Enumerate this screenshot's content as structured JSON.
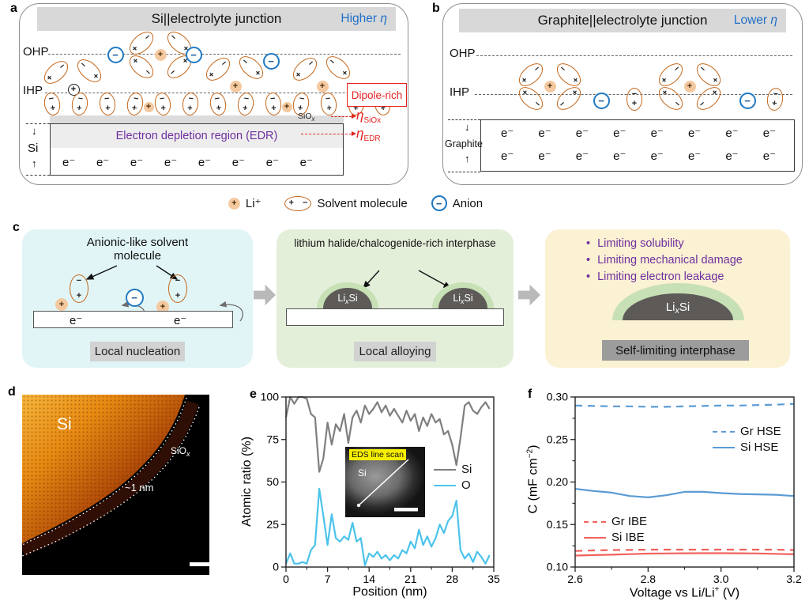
{
  "symbols": {
    "plus": "+",
    "minus": "−",
    "electron": "e⁻",
    "up_arrow": "↑",
    "down_arrow": "↓",
    "bullet": "•"
  },
  "colors": {
    "header_gray": "#d8d8d8",
    "accent_blue": "#2170c8",
    "solvent_orange": "#c4671b",
    "li_fill": "#f4c9a0",
    "anion_blue": "#2079c2",
    "red": "#e42320",
    "purple": "#7030a0",
    "box_cyan": "#e1f5f6",
    "box_green": "#e4efda",
    "box_cream": "#fbf1d3",
    "dome_gray": "#5d5a58",
    "halo_green": "#c7e0b5",
    "label_gray": "#d2d2d2",
    "dark_label_gray": "#9c9c9c",
    "arrow_gray": "#b9b9b9",
    "si_line": "#7f7f7f",
    "o_line": "#4cc3ea",
    "hse_blue": "#5b9bd5",
    "ibe_red": "#f0625d"
  },
  "panel_a": {
    "label": "a",
    "title": "Si||electrolyte junction",
    "eta_note": {
      "prefix": "Higher ",
      "eta": "η"
    },
    "ohp": "OHP",
    "ihp": "IHP",
    "dipole_rich": "Dipole-rich",
    "siox": {
      "base": "SiO",
      "sub": "x"
    },
    "eta_siox": {
      "eta": "η",
      "sub": "SiOx"
    },
    "eta_edr": {
      "eta": "η",
      "sub": "EDR"
    },
    "edr_text": "Electron depletion region (EDR)",
    "electrode": "Si",
    "electrons_per_row": 8
  },
  "panel_b": {
    "label": "b",
    "title": "Graphite||electrolyte junction",
    "eta_note": {
      "prefix": "Lower ",
      "eta": "η"
    },
    "ohp": "OHP",
    "ihp": "IHP",
    "electrode": "Graphite",
    "electron_rows": 2,
    "electrons_per_row": 8
  },
  "legend": {
    "li": "Li⁺",
    "solvent": "Solvent molecule",
    "anion": "Anion"
  },
  "panel_c": {
    "label": "c",
    "stage1": {
      "annotation": "Anionic-like solvent molecule",
      "caption": "Local nucleation"
    },
    "stage2": {
      "annotation": "lithium halide/chalcogenide-rich interphase",
      "caption": "Local alloying",
      "lix_si": {
        "pre": "Li",
        "sub": "x",
        "post": "Si"
      }
    },
    "stage3": {
      "bullets": [
        "Limiting solubility",
        "Limiting mechanical damage",
        "Limiting electron leakage"
      ],
      "caption": "Self-limiting interphase",
      "lix_si": {
        "pre": "Li",
        "sub": "x",
        "post": "Si"
      }
    }
  },
  "panel_d": {
    "label": "d",
    "si": "Si",
    "siox": {
      "base": "SiO",
      "sub": "x"
    },
    "thickness": "~1 nm"
  },
  "panel_e": {
    "label": "e",
    "inset": {
      "title": "EDS line scan",
      "si": "Si"
    }
  },
  "panel_f": {
    "label": "f",
    "xlabel_parts": [
      "Voltage vs Li/Li",
      "+",
      " (V)"
    ],
    "ylabel_parts": [
      "C (mF cm",
      "−2",
      ")"
    ]
  },
  "chart_data": [
    {
      "id": "e",
      "type": "line",
      "xlabel": "Position (nm)",
      "ylabel": "Atomic ratio (%)",
      "xlim": [
        0,
        35
      ],
      "ylim": [
        0,
        100
      ],
      "xticks": [
        0,
        7,
        14,
        21,
        28,
        35
      ],
      "yticks": [
        0,
        25,
        50,
        75,
        100
      ],
      "xminor": [
        3.5,
        10.5,
        17.5,
        24.5,
        31.5
      ],
      "yminor": [],
      "xdec": 0,
      "ydec": 0,
      "grid": false,
      "legend_position": "right-middle",
      "series": [
        {
          "name": "Si",
          "color": "#7f7f7f",
          "dash": false,
          "x": [
            0,
            0.7,
            1.4,
            2.1,
            2.8,
            3.5,
            4.2,
            4.9,
            5.6,
            6.3,
            7,
            7.7,
            8.4,
            9.1,
            9.8,
            10.5,
            11.2,
            11.9,
            12.6,
            13.3,
            14,
            14.7,
            15.4,
            16.1,
            16.8,
            17.5,
            18.2,
            18.9,
            19.6,
            20.3,
            21,
            21.7,
            22.4,
            23.1,
            23.8,
            24.5,
            25.2,
            25.9,
            26.6,
            27.3,
            28,
            28.7,
            29.4,
            30.1,
            30.8,
            31.5,
            32.2,
            32.9,
            33.6,
            34.3
          ],
          "y": [
            88,
            100,
            96,
            100,
            100,
            99,
            90,
            88,
            56,
            64,
            85,
            72,
            84,
            80,
            90,
            73,
            88,
            92,
            85,
            95,
            90,
            93,
            97,
            91,
            95,
            89,
            93,
            89,
            85,
            92,
            86,
            90,
            80,
            88,
            83,
            90,
            85,
            87,
            78,
            80,
            72,
            60,
            76,
            95,
            97,
            92,
            90,
            94,
            97,
            93
          ]
        },
        {
          "name": "O",
          "color": "#4cc3ea",
          "dash": false,
          "x": [
            0,
            0.7,
            1.4,
            2.1,
            2.8,
            3.5,
            4.2,
            4.9,
            5.6,
            6.3,
            7,
            7.7,
            8.4,
            9.1,
            9.8,
            10.5,
            11.2,
            11.9,
            12.6,
            13.3,
            14,
            14.7,
            15.4,
            16.1,
            16.8,
            17.5,
            18.2,
            18.9,
            19.6,
            20.3,
            21,
            21.7,
            22.4,
            23.1,
            23.8,
            24.5,
            25.2,
            25.9,
            26.6,
            27.3,
            28,
            28.7,
            29.4,
            30.1,
            30.8,
            31.5,
            32.2,
            32.9,
            33.6,
            34.3
          ],
          "y": [
            2,
            8,
            2,
            2,
            3,
            2,
            10,
            13,
            46,
            30,
            13,
            31,
            17,
            15,
            18,
            16,
            26,
            15,
            17,
            1,
            8,
            6,
            9,
            5,
            7,
            4,
            7,
            5,
            10,
            8,
            15,
            11,
            22,
            13,
            18,
            12,
            17,
            25,
            20,
            27,
            30,
            39,
            10,
            5,
            8,
            3,
            9,
            6,
            2,
            7
          ]
        }
      ]
    },
    {
      "id": "f",
      "type": "line",
      "xlabel": "Voltage vs Li/Li⁺ (V)",
      "ylabel": "C (mF cm⁻²)",
      "xlim": [
        2.6,
        3.2
      ],
      "ylim": [
        0.1,
        0.3
      ],
      "xticks": [
        2.6,
        2.8,
        3.0,
        3.2
      ],
      "yticks": [
        0.1,
        0.15,
        0.2,
        0.25,
        0.3
      ],
      "xminor": [
        2.7,
        2.9,
        3.1
      ],
      "yminor": [
        0.125,
        0.175,
        0.225,
        0.275
      ],
      "xdec": 1,
      "ydec": 2,
      "grid": false,
      "legend_position": "split",
      "series": [
        {
          "name": "Gr HSE",
          "color": "#5b9bd5",
          "dash": true,
          "x": [
            2.6,
            2.65,
            2.7,
            2.75,
            2.8,
            2.85,
            2.9,
            2.95,
            3.0,
            3.05,
            3.1,
            3.15,
            3.2
          ],
          "y": [
            0.29,
            0.2895,
            0.289,
            0.289,
            0.2885,
            0.2885,
            0.289,
            0.2895,
            0.29,
            0.29,
            0.2905,
            0.291,
            0.292
          ]
        },
        {
          "name": "Si HSE",
          "color": "#5b9bd5",
          "dash": false,
          "x": [
            2.6,
            2.65,
            2.7,
            2.75,
            2.8,
            2.85,
            2.9,
            2.95,
            3.0,
            3.05,
            3.1,
            3.15,
            3.2
          ],
          "y": [
            0.192,
            0.1895,
            0.1875,
            0.1835,
            0.182,
            0.1845,
            0.1885,
            0.1885,
            0.187,
            0.186,
            0.1855,
            0.185,
            0.1835
          ]
        },
        {
          "name": "Gr IBE",
          "color": "#f0625d",
          "dash": true,
          "x": [
            2.6,
            2.65,
            2.7,
            2.75,
            2.8,
            2.85,
            2.9,
            2.95,
            3.0,
            3.05,
            3.1,
            3.15,
            3.2
          ],
          "y": [
            0.119,
            0.1195,
            0.12,
            0.1202,
            0.1205,
            0.1205,
            0.1205,
            0.1205,
            0.1205,
            0.1205,
            0.1205,
            0.1205,
            0.12
          ]
        },
        {
          "name": "Si IBE",
          "color": "#f0625d",
          "dash": false,
          "x": [
            2.6,
            2.65,
            2.7,
            2.75,
            2.8,
            2.85,
            2.9,
            2.95,
            3.0,
            3.05,
            3.1,
            3.15,
            3.2
          ],
          "y": [
            0.1135,
            0.114,
            0.1145,
            0.1152,
            0.1158,
            0.116,
            0.1162,
            0.1163,
            0.1163,
            0.1162,
            0.116,
            0.1155,
            0.115
          ]
        }
      ]
    }
  ]
}
